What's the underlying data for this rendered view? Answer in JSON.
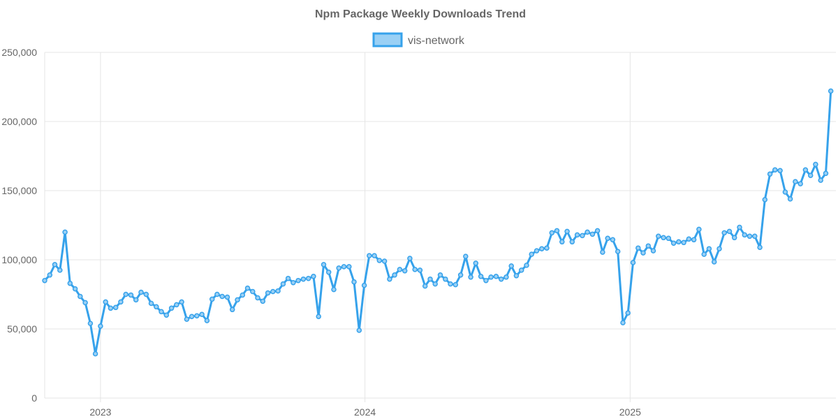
{
  "chart_data": {
    "type": "line",
    "title": "Npm Package Weekly Downloads Trend",
    "xlabel": "",
    "ylabel": "",
    "x_start": "2022-10-16",
    "x_step_days": 7,
    "x_ticks": [
      "2023",
      "2024",
      "2025"
    ],
    "x_tick_dates": [
      "2023-01-01",
      "2024-01-01",
      "2025-01-01"
    ],
    "x_range": [
      "2022-10-16",
      "2025-10-12"
    ],
    "y_ticks": [
      "0",
      "50,000",
      "100,000",
      "150,000",
      "200,000",
      "250,000"
    ],
    "ylim": [
      0,
      250000
    ],
    "grid": true,
    "legend_position": "top-center",
    "colors": {
      "line": "#36a2eb",
      "fill": "#9ad0f5",
      "grid": "#e5e5e5",
      "text": "#666666"
    },
    "series": [
      {
        "name": "vis-network",
        "values": [
          85000,
          89000,
          96500,
          92500,
          120000,
          83000,
          79000,
          73500,
          69000,
          54000,
          32000,
          52000,
          69500,
          65000,
          65500,
          69500,
          75000,
          74500,
          71000,
          76500,
          75000,
          68500,
          66000,
          62500,
          60000,
          65000,
          67500,
          69500,
          57000,
          59000,
          59500,
          60500,
          56000,
          71500,
          75000,
          73500,
          73000,
          64000,
          71000,
          74500,
          79500,
          77000,
          72500,
          70000,
          76000,
          77000,
          77500,
          82500,
          86500,
          83500,
          85000,
          86000,
          86500,
          88000,
          59000,
          96500,
          91000,
          78500,
          94000,
          95000,
          95000,
          84000,
          49000,
          81500,
          103000,
          103000,
          99500,
          99000,
          86000,
          89000,
          93000,
          92000,
          101000,
          93000,
          92500,
          81000,
          86000,
          82500,
          89000,
          86000,
          82500,
          82000,
          89000,
          102500,
          87500,
          97500,
          88000,
          85000,
          87500,
          88000,
          86000,
          87500,
          95500,
          88500,
          92500,
          96000,
          104000,
          106500,
          108000,
          108500,
          119500,
          121000,
          113000,
          120500,
          113000,
          118000,
          117500,
          120000,
          118500,
          121000,
          105500,
          115500,
          114500,
          106000,
          54500,
          61500,
          98000,
          108500,
          105000,
          110000,
          106500,
          117000,
          116000,
          115500,
          112000,
          113000,
          112500,
          115000,
          114500,
          122000,
          104000,
          108000,
          98500,
          108000,
          119500,
          120500,
          116000,
          123500,
          118000,
          117000,
          117000,
          109000,
          143500,
          162000,
          165000,
          164500,
          149000,
          144000,
          156500,
          155000,
          165000,
          161000,
          169000,
          157500,
          162500,
          222000
        ]
      }
    ]
  }
}
